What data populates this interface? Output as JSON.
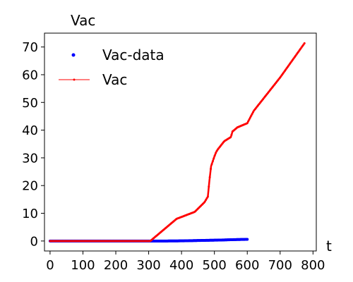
{
  "chart_data": {
    "type": "line",
    "title": "",
    "ylabel": "Vac",
    "xlabel": "t",
    "xlim": [
      -17,
      810
    ],
    "ylim": [
      -3.6,
      75
    ],
    "xticks": [
      0,
      100,
      200,
      300,
      400,
      500,
      600,
      700,
      800
    ],
    "yticks": [
      0,
      10,
      20,
      30,
      40,
      50,
      60,
      70
    ],
    "grid": false,
    "legend_position": "top-left",
    "colors": {
      "data": "#0000ff",
      "model": "#ff0000"
    },
    "series": [
      {
        "name": "Vac-data",
        "style": "points",
        "x": [
          0,
          50,
          100,
          150,
          200,
          250,
          300,
          350,
          400,
          440,
          480,
          520,
          560,
          600
        ],
        "y": [
          0,
          0,
          0,
          0,
          0,
          0,
          0,
          0,
          0.05,
          0.15,
          0.25,
          0.35,
          0.5,
          0.6
        ]
      },
      {
        "name": "Vac",
        "style": "line-marker",
        "x": [
          0,
          100,
          200,
          305,
          345,
          385,
          440,
          470,
          480,
          485,
          490,
          500,
          505,
          510,
          530,
          550,
          555,
          560,
          570,
          600,
          620,
          700,
          775
        ],
        "y": [
          0,
          0,
          0,
          0,
          4,
          8,
          10.5,
          14,
          16,
          22,
          27,
          30.5,
          32,
          33,
          36,
          37.5,
          39.5,
          40,
          41,
          42.5,
          47,
          59,
          71.5
        ]
      }
    ]
  }
}
